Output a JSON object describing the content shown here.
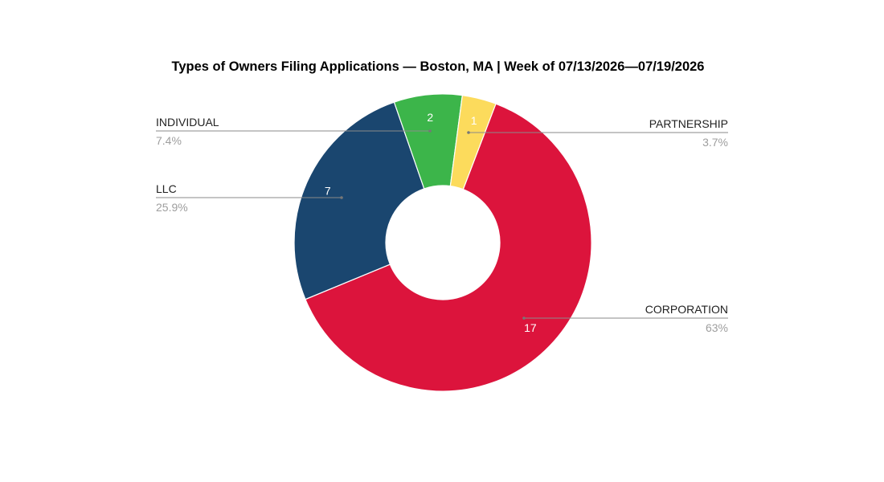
{
  "chart_data": {
    "type": "pie",
    "donut": true,
    "title": "Types of Owners Filing Applications — Boston, MA | Week of 07/13/2026—07/19/2026",
    "slices": [
      {
        "label": "CORPORATION",
        "value": 17,
        "percent_label": "63%",
        "color": "#dc143c"
      },
      {
        "label": "LLC",
        "value": 7,
        "percent_label": "25.9%",
        "color": "#1a466f"
      },
      {
        "label": "INDIVIDUAL",
        "value": 2,
        "percent_label": "7.4%",
        "color": "#3cb54a"
      },
      {
        "label": "PARTNERSHIP",
        "value": 1,
        "percent_label": "3.7%",
        "color": "#fcdb5c"
      }
    ],
    "legend": "leader-lines"
  }
}
